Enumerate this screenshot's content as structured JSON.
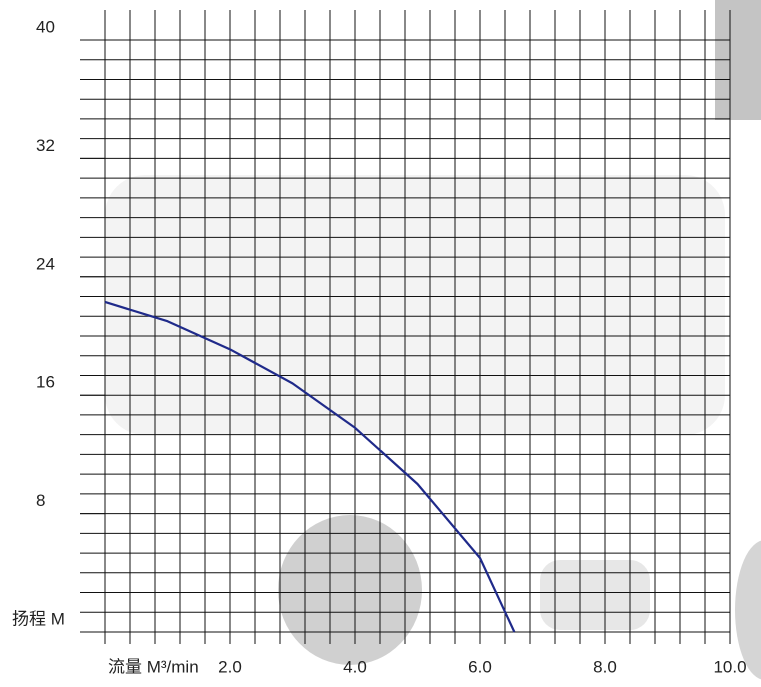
{
  "chart_data": {
    "type": "line",
    "x_label": "流量 M³/min",
    "y_label": "扬程 M",
    "xlim": [
      0,
      10
    ],
    "ylim": [
      0,
      40
    ],
    "xticks": [
      {
        "value": 2,
        "label": "2.0"
      },
      {
        "value": 4,
        "label": "4.0"
      },
      {
        "value": 6,
        "label": "6.0"
      },
      {
        "value": 8,
        "label": "8.0"
      },
      {
        "value": 10,
        "label": "10.0"
      }
    ],
    "yticks": [
      8,
      16,
      24,
      32,
      40
    ],
    "grid": true,
    "series": [
      {
        "name": "扬程",
        "color": "#1f2a8a",
        "x": [
          0,
          1,
          2,
          3,
          4,
          5,
          6,
          6.55
        ],
        "values": [
          22.3,
          21,
          19.1,
          16.8,
          13.8,
          10,
          5,
          0
        ]
      }
    ]
  }
}
